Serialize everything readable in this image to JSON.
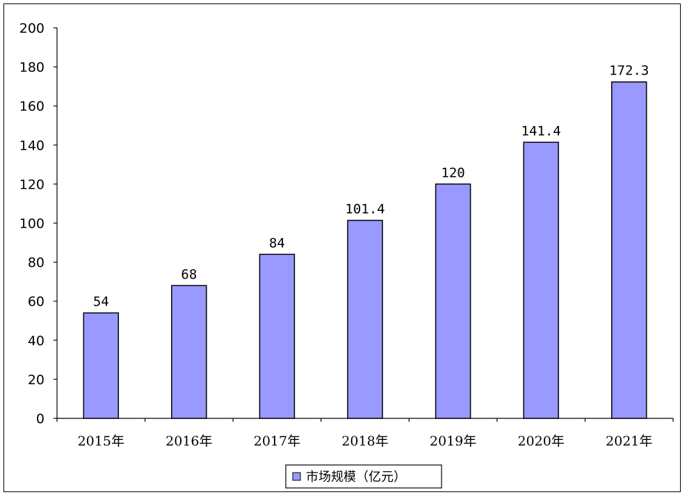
{
  "chart_data": {
    "type": "bar",
    "categories": [
      "2015年",
      "2016年",
      "2017年",
      "2018年",
      "2019年",
      "2020年",
      "2021年"
    ],
    "series": [
      {
        "name": "市场规模（亿元）",
        "values": [
          54,
          68,
          84,
          101.4,
          120,
          141.4,
          172.3
        ],
        "labels": [
          "54",
          "68",
          "84",
          "101.4",
          "120",
          "141.4",
          "172.3"
        ],
        "color": "#9999ff"
      }
    ],
    "title": "",
    "xlabel": "",
    "ylabel": "",
    "ylim": [
      0,
      200
    ],
    "yticks": [
      0,
      20,
      40,
      60,
      80,
      100,
      120,
      140,
      160,
      180,
      200
    ],
    "grid": false,
    "legend": "bottom-center"
  },
  "colors": {
    "bar_fill": "#9999ff",
    "bar_stroke": "#000000",
    "axis": "#000000"
  }
}
